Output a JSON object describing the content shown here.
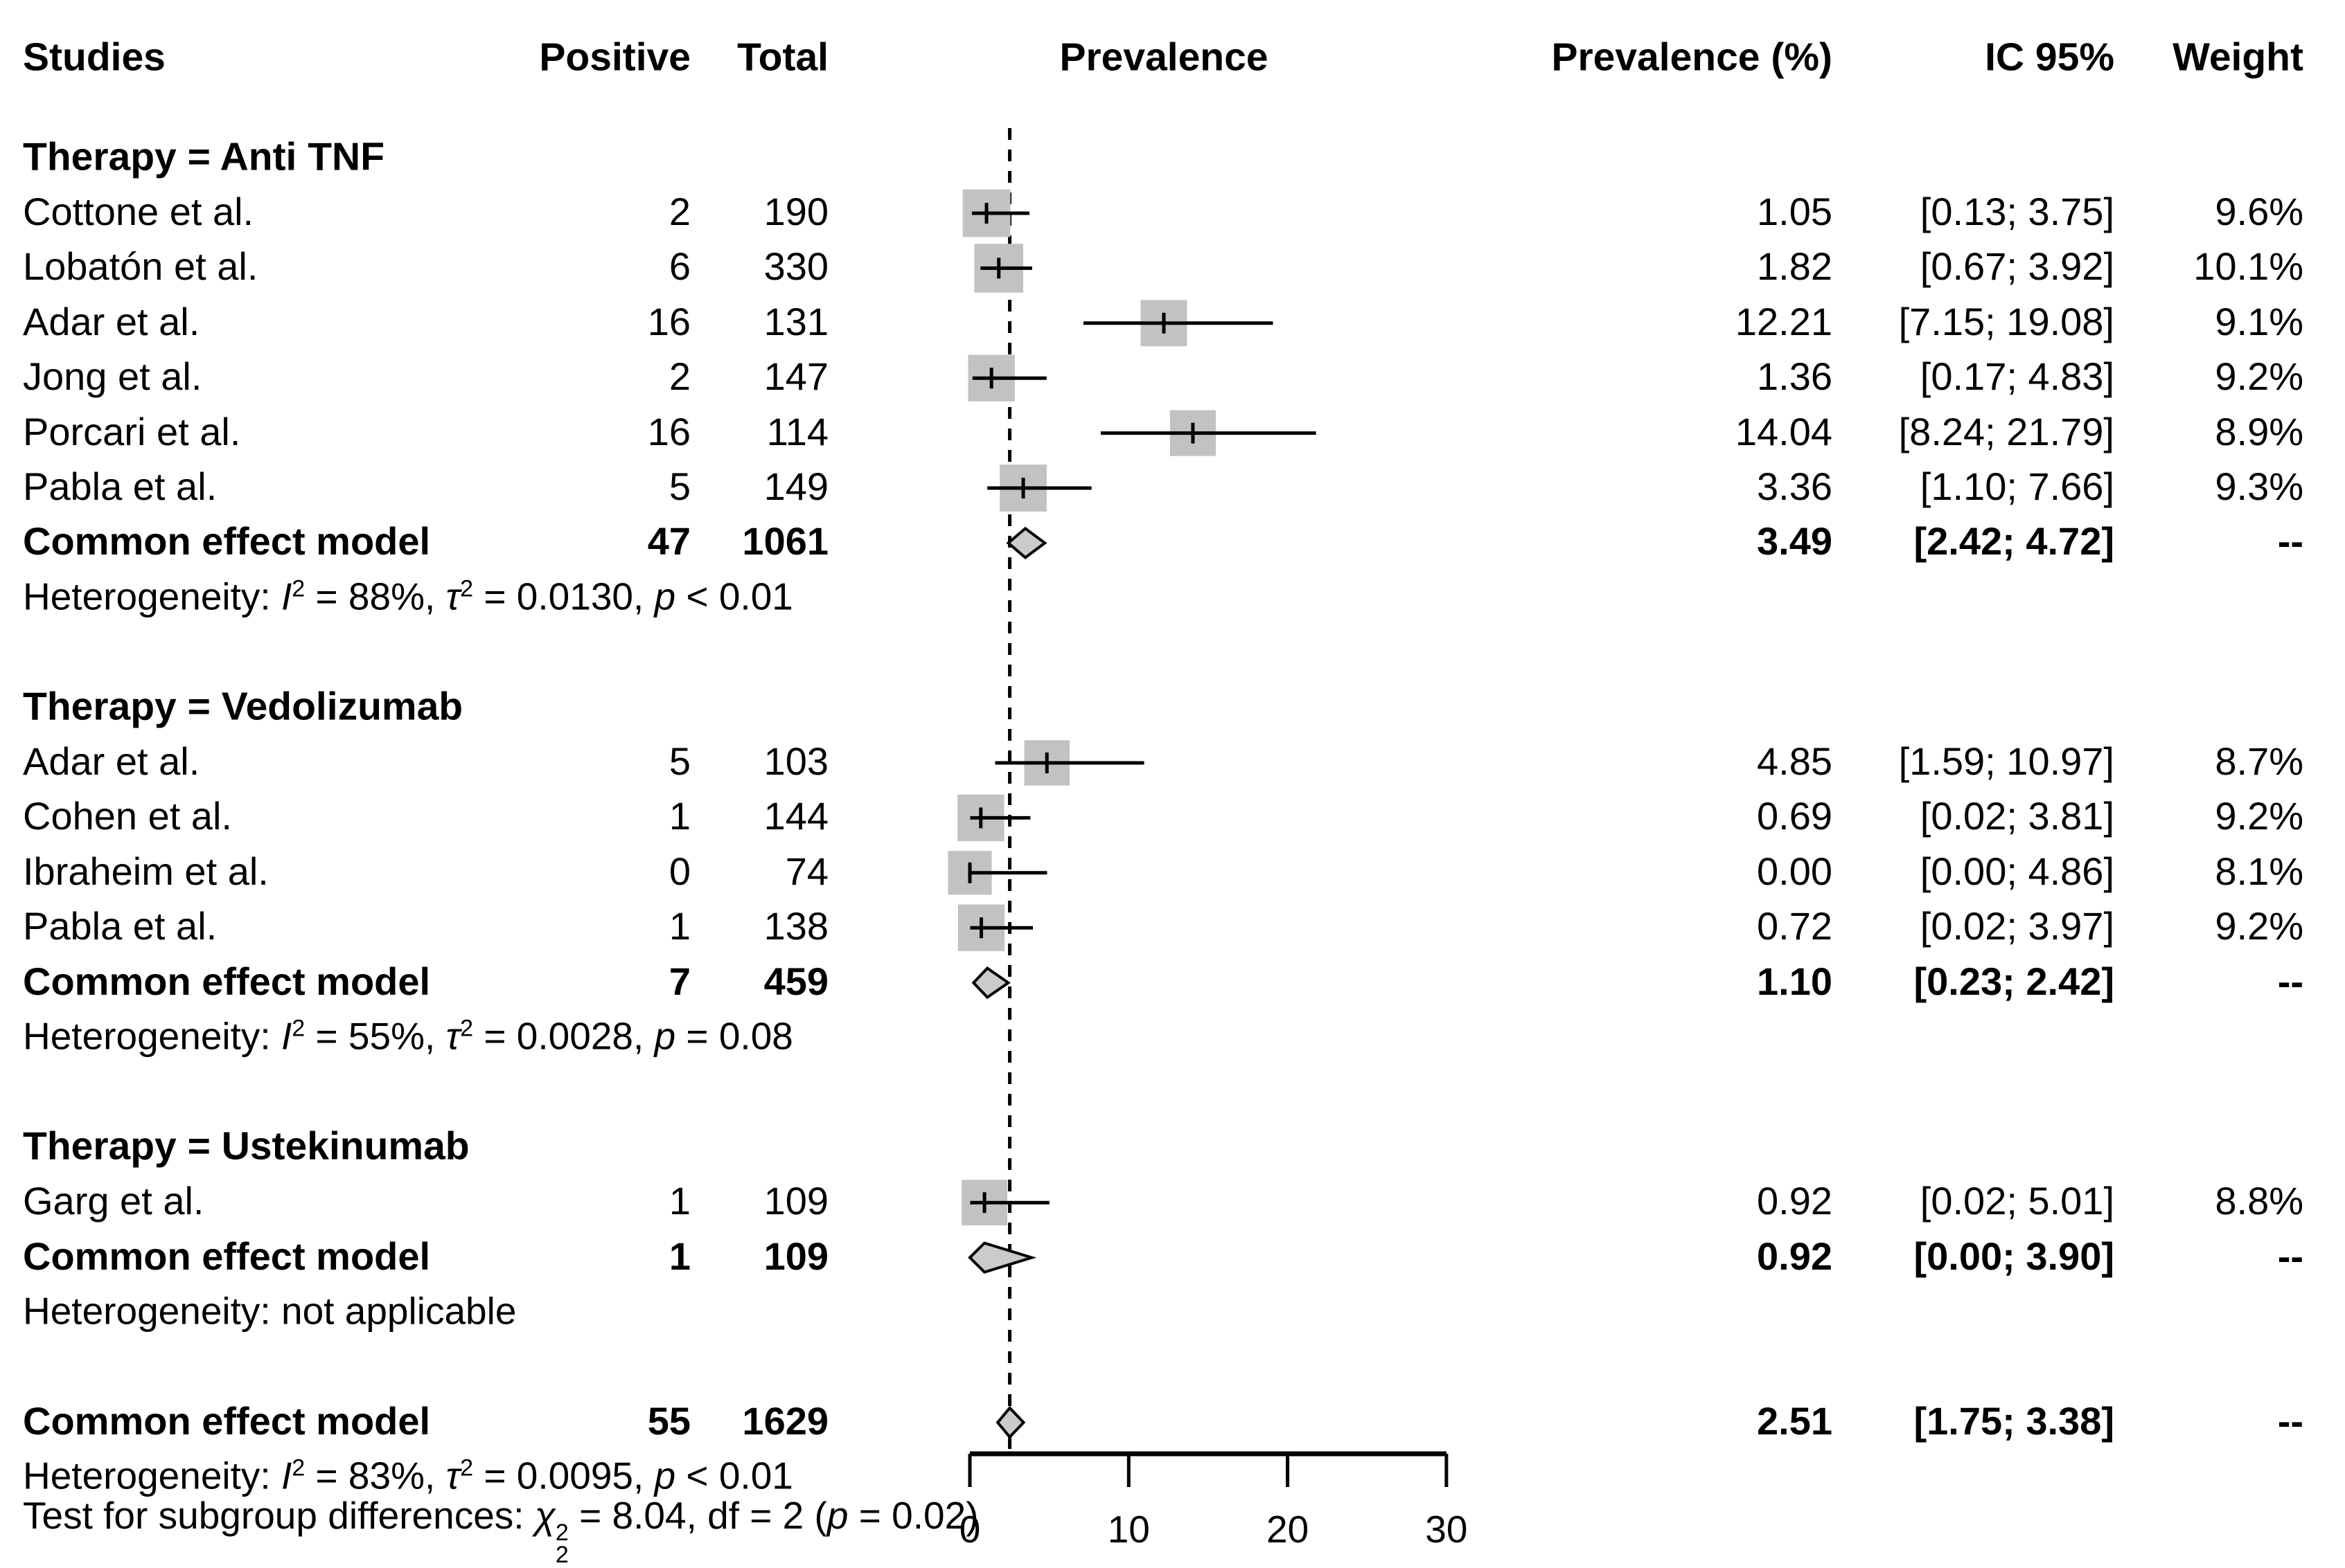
{
  "columns": {
    "studies": "Studies",
    "positive": "Positive",
    "total": "Total",
    "prevalence_plot": "Prevalence",
    "prevalence_pct": "Prevalence (%)",
    "ic95": "IC 95%",
    "weight": "Weight"
  },
  "chart_data": {
    "type": "forest",
    "xlim": [
      0,
      30
    ],
    "x_ticks": [
      0,
      10,
      20,
      30
    ],
    "reference_line": 2.51,
    "marker_color": "#c2c2c2",
    "diamond_color": "#cbcbcb",
    "groups": [
      {
        "label": "Therapy = Anti TNF",
        "studies": [
          {
            "name": "Cottone et al.",
            "positive": "2",
            "total": "190",
            "prevalence": 1.05,
            "prevalence_text": "1.05",
            "ci_low": 0.13,
            "ci_high": 3.75,
            "ci_text": "[0.13; 3.75]",
            "weight": 9.6,
            "weight_text": "9.6%"
          },
          {
            "name": "Lobatón et al.",
            "positive": "6",
            "total": "330",
            "prevalence": 1.82,
            "prevalence_text": "1.82",
            "ci_low": 0.67,
            "ci_high": 3.92,
            "ci_text": "[0.67; 3.92]",
            "weight": 10.1,
            "weight_text": "10.1%"
          },
          {
            "name": "Adar et al.",
            "positive": "16",
            "total": "131",
            "prevalence": 12.21,
            "prevalence_text": "12.21",
            "ci_low": 7.15,
            "ci_high": 19.08,
            "ci_text": "[7.15; 19.08]",
            "weight": 9.1,
            "weight_text": "9.1%"
          },
          {
            "name": "Jong et al.",
            "positive": "2",
            "total": "147",
            "prevalence": 1.36,
            "prevalence_text": "1.36",
            "ci_low": 0.17,
            "ci_high": 4.83,
            "ci_text": "[0.17; 4.83]",
            "weight": 9.2,
            "weight_text": "9.2%"
          },
          {
            "name": "Porcari et al.",
            "positive": "16",
            "total": "114",
            "prevalence": 14.04,
            "prevalence_text": "14.04",
            "ci_low": 8.24,
            "ci_high": 21.79,
            "ci_text": "[8.24; 21.79]",
            "weight": 8.9,
            "weight_text": "8.9%"
          },
          {
            "name": "Pabla et al.",
            "positive": "5",
            "total": "149",
            "prevalence": 3.36,
            "prevalence_text": "3.36",
            "ci_low": 1.1,
            "ci_high": 7.66,
            "ci_text": "[1.10; 7.66]",
            "weight": 9.3,
            "weight_text": "9.3%"
          }
        ],
        "common_effect": {
          "name": "Common effect model",
          "positive": "47",
          "total": "1061",
          "prevalence": 3.49,
          "prevalence_text": "3.49",
          "ci_low": 2.42,
          "ci_high": 4.72,
          "ci_text": "[2.42; 4.72]",
          "weight_text": "--"
        },
        "heterogeneity": [
          {
            "t": "Heterogeneity: "
          },
          {
            "t": "I",
            "s": "i"
          },
          {
            "t": "2",
            "s": "sup"
          },
          {
            "t": " = 88%, "
          },
          {
            "t": "τ",
            "s": "i"
          },
          {
            "t": "2",
            "s": "sup"
          },
          {
            "t": " = 0.0130, "
          },
          {
            "t": "p",
            "s": "i"
          },
          {
            "t": " < 0.01"
          }
        ]
      },
      {
        "label": "Therapy = Vedolizumab",
        "studies": [
          {
            "name": "Adar et al.",
            "positive": "5",
            "total": "103",
            "prevalence": 4.85,
            "prevalence_text": "4.85",
            "ci_low": 1.59,
            "ci_high": 10.97,
            "ci_text": "[1.59; 10.97]",
            "weight": 8.7,
            "weight_text": "8.7%"
          },
          {
            "name": "Cohen et al.",
            "positive": "1",
            "total": "144",
            "prevalence": 0.69,
            "prevalence_text": "0.69",
            "ci_low": 0.02,
            "ci_high": 3.81,
            "ci_text": "[0.02; 3.81]",
            "weight": 9.2,
            "weight_text": "9.2%"
          },
          {
            "name": "Ibraheim et al.",
            "positive": "0",
            "total": "74",
            "prevalence": 0.0,
            "prevalence_text": "0.00",
            "ci_low": 0.0,
            "ci_high": 4.86,
            "ci_text": "[0.00; 4.86]",
            "weight": 8.1,
            "weight_text": "8.1%"
          },
          {
            "name": "Pabla et al.",
            "positive": "1",
            "total": "138",
            "prevalence": 0.72,
            "prevalence_text": "0.72",
            "ci_low": 0.02,
            "ci_high": 3.97,
            "ci_text": "[0.02; 3.97]",
            "weight": 9.2,
            "weight_text": "9.2%"
          }
        ],
        "common_effect": {
          "name": "Common effect model",
          "positive": "7",
          "total": "459",
          "prevalence": 1.1,
          "prevalence_text": "1.10",
          "ci_low": 0.23,
          "ci_high": 2.42,
          "ci_text": "[0.23; 2.42]",
          "weight_text": "--"
        },
        "heterogeneity": [
          {
            "t": "Heterogeneity: "
          },
          {
            "t": "I",
            "s": "i"
          },
          {
            "t": "2",
            "s": "sup"
          },
          {
            "t": " = 55%, "
          },
          {
            "t": "τ",
            "s": "i"
          },
          {
            "t": "2",
            "s": "sup"
          },
          {
            "t": " = 0.0028, "
          },
          {
            "t": "p",
            "s": "i"
          },
          {
            "t": " = 0.08"
          }
        ]
      },
      {
        "label": "Therapy = Ustekinumab",
        "studies": [
          {
            "name": "Garg et al.",
            "positive": "1",
            "total": "109",
            "prevalence": 0.92,
            "prevalence_text": "0.92",
            "ci_low": 0.02,
            "ci_high": 5.01,
            "ci_text": "[0.02; 5.01]",
            "weight": 8.8,
            "weight_text": "8.8%"
          }
        ],
        "common_effect": {
          "name": "Common effect model",
          "positive": "1",
          "total": "109",
          "prevalence": 0.92,
          "prevalence_text": "0.92",
          "ci_low": 0.0,
          "ci_high": 3.9,
          "ci_text": "[0.00; 3.90]",
          "weight_text": "--"
        },
        "heterogeneity": [
          {
            "t": "Heterogeneity: not applicable"
          }
        ]
      }
    ],
    "overall": {
      "name": "Common effect model",
      "positive": "55",
      "total": "1629",
      "prevalence": 2.51,
      "prevalence_text": "2.51",
      "ci_low": 1.75,
      "ci_high": 3.38,
      "ci_text": "[1.75; 3.38]",
      "weight_text": "--"
    },
    "overall_heterogeneity": [
      {
        "t": "Heterogeneity: "
      },
      {
        "t": "I",
        "s": "i"
      },
      {
        "t": "2",
        "s": "sup"
      },
      {
        "t": " = 83%, "
      },
      {
        "t": "τ",
        "s": "i"
      },
      {
        "t": "2",
        "s": "sup"
      },
      {
        "t": " = 0.0095, "
      },
      {
        "t": "p",
        "s": "i"
      },
      {
        "t": " < 0.01"
      }
    ],
    "subgroup_test": [
      {
        "t": "Test for subgroup differences: "
      },
      {
        "t": "χ",
        "s": "i"
      },
      {
        "t": "2|2",
        "s": "stack"
      },
      {
        "t": " = 8.04, df = 2 ("
      },
      {
        "t": "p",
        "s": "i"
      },
      {
        "t": " = 0.02)"
      }
    ]
  }
}
